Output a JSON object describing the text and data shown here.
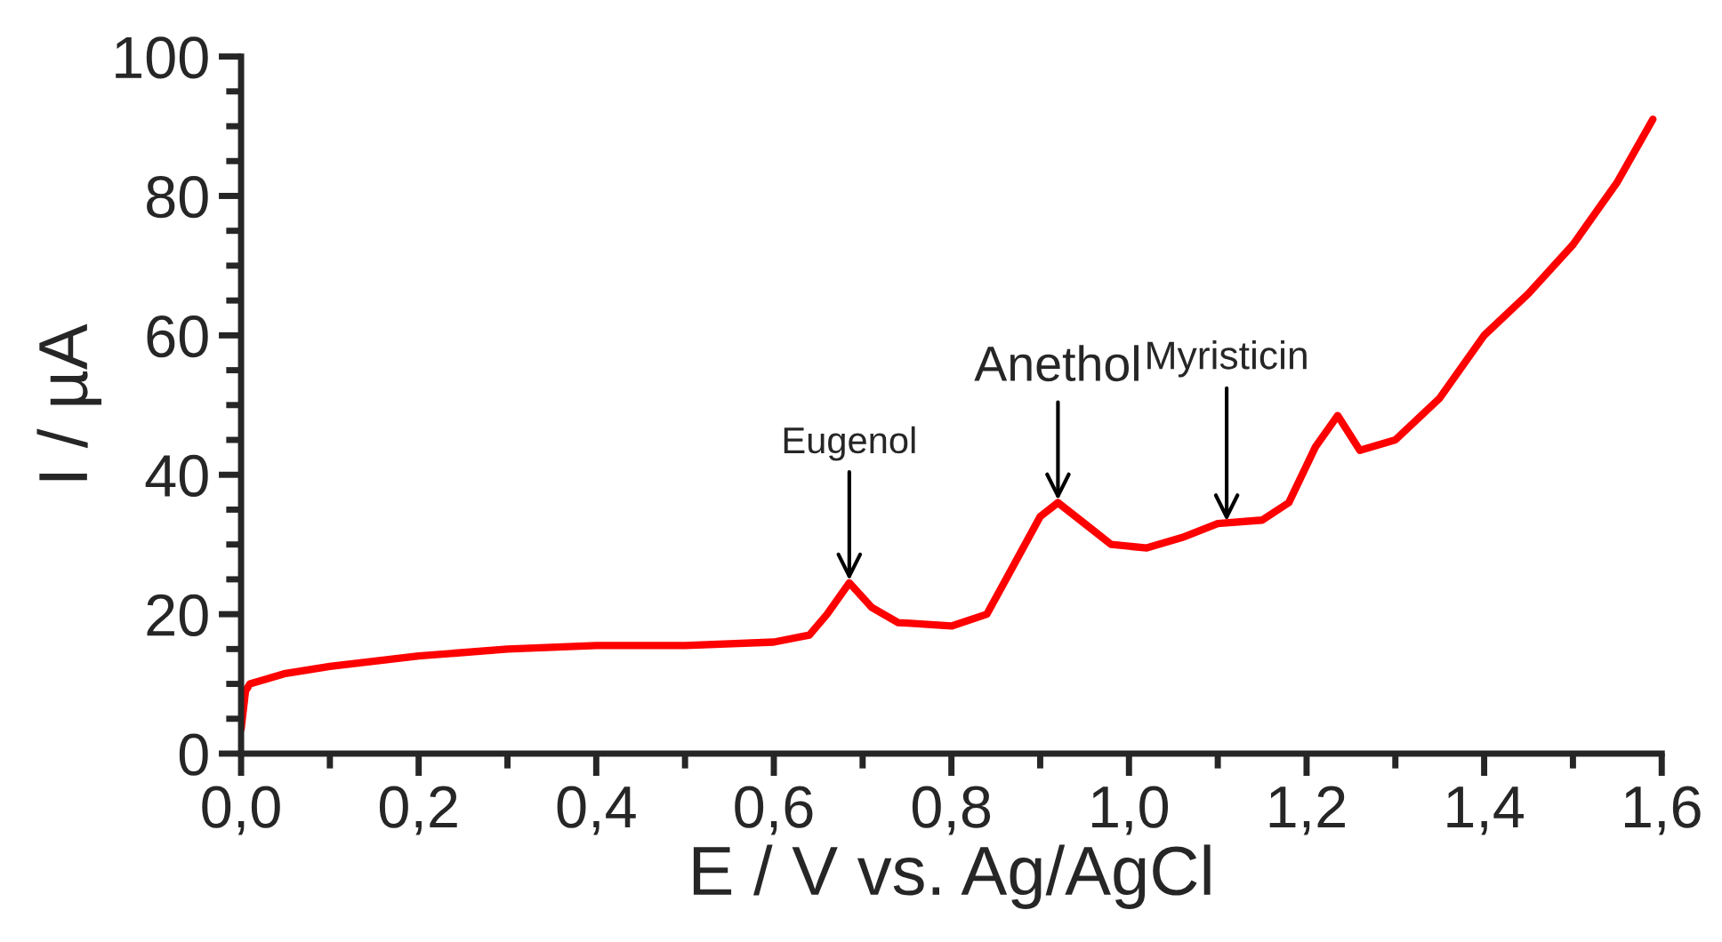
{
  "chart_data": {
    "type": "line",
    "xlabel": "E / V vs. Ag/AgCl",
    "ylabel": "I / µA",
    "x": [
      0,
      0.005,
      0.01,
      0.05,
      0.1,
      0.2,
      0.3,
      0.4,
      0.5,
      0.6,
      0.64,
      0.66,
      0.685,
      0.71,
      0.74,
      0.8,
      0.84,
      0.87,
      0.9,
      0.92,
      0.95,
      0.98,
      1.02,
      1.06,
      1.1,
      1.15,
      1.18,
      1.21,
      1.235,
      1.26,
      1.3,
      1.35,
      1.4,
      1.45,
      1.5,
      1.55,
      1.59
    ],
    "series": [
      {
        "color": "#ff0000",
        "values": [
          3.5,
          9,
          10,
          11.5,
          12.5,
          14,
          15,
          15.5,
          15.5,
          16,
          17,
          20,
          24.5,
          21,
          18.8,
          18.3,
          20,
          27,
          34,
          36,
          33,
          30,
          29.5,
          31,
          33,
          33.5,
          36,
          44,
          48.5,
          43.5,
          45,
          51,
          60,
          66,
          73,
          82,
          91
        ]
      }
    ],
    "xlim": [
      0,
      1.6
    ],
    "ylim": [
      0,
      100
    ],
    "xticks": [
      {
        "value": 0,
        "label": "0,0"
      },
      {
        "value": 0.2,
        "label": "0,2"
      },
      {
        "value": 0.4,
        "label": "0,4"
      },
      {
        "value": 0.6,
        "label": "0,6"
      },
      {
        "value": 0.8,
        "label": "0,8"
      },
      {
        "value": 1.0,
        "label": "1,0"
      },
      {
        "value": 1.2,
        "label": "1,2"
      },
      {
        "value": 1.4,
        "label": "1,4"
      },
      {
        "value": 1.6,
        "label": "1,6"
      }
    ],
    "yticks": [
      0,
      20,
      40,
      60,
      80,
      100
    ],
    "grid": false,
    "marker": "none",
    "line_style": "solid",
    "legend": false,
    "annotations": [
      {
        "text": "Eugenol",
        "x": 0.685,
        "y": 24.5
      },
      {
        "text": "Anethol",
        "x": 0.92,
        "y": 36
      },
      {
        "text": "Myristicin",
        "x": 1.11,
        "y": 33
      }
    ]
  }
}
